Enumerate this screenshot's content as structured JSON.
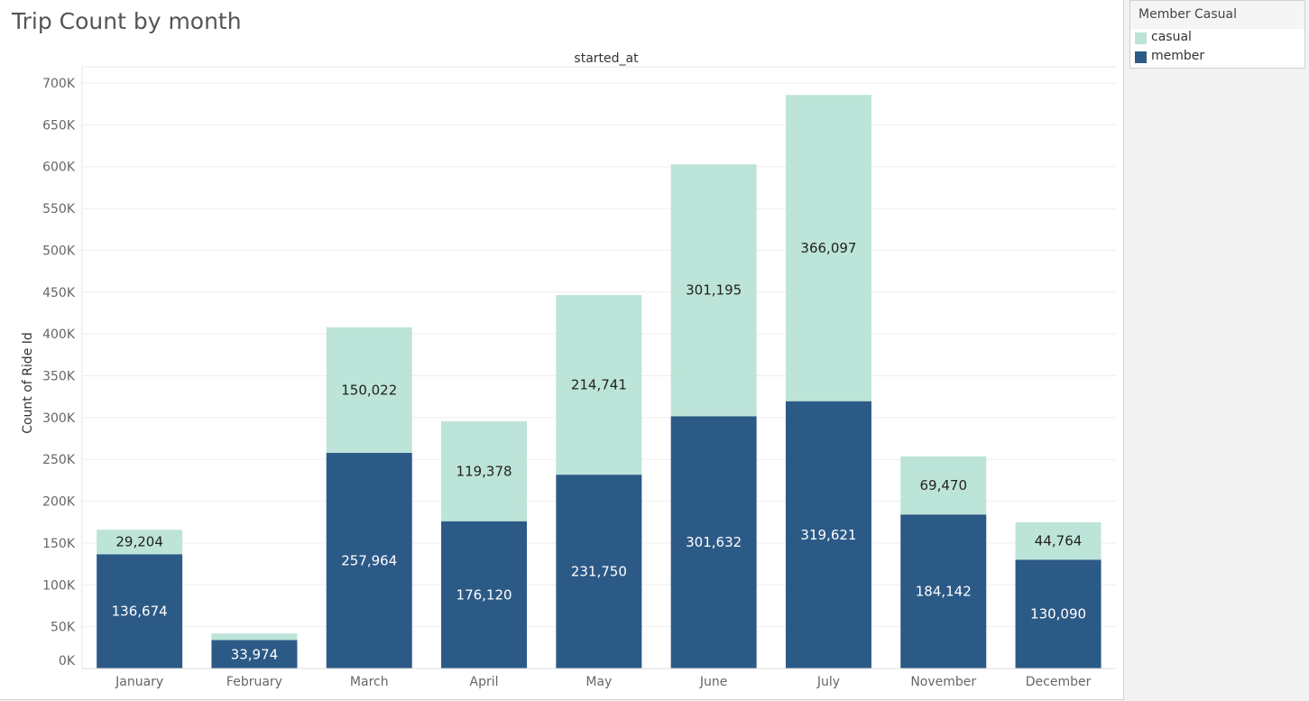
{
  "title": "Trip Count by month",
  "legend": {
    "title": "Member Casual",
    "items": [
      {
        "label": "casual",
        "color": "#bde4d8"
      },
      {
        "label": "member",
        "color": "#2c5a87"
      }
    ]
  },
  "chart_data": {
    "type": "bar",
    "stacked": true,
    "header": "started_at",
    "ylabel": "Count of Ride Id",
    "ylim": [
      0,
      700000
    ],
    "yticks": [
      0,
      50000,
      100000,
      150000,
      200000,
      250000,
      300000,
      350000,
      400000,
      450000,
      500000,
      550000,
      600000,
      650000,
      700000
    ],
    "ytick_labels": [
      "0K",
      "50K",
      "100K",
      "150K",
      "200K",
      "250K",
      "300K",
      "350K",
      "400K",
      "450K",
      "500K",
      "550K",
      "600K",
      "650K",
      "700K"
    ],
    "grid": true,
    "legend_position": "right",
    "categories": [
      "January",
      "February",
      "March",
      "April",
      "May",
      "June",
      "July",
      "November",
      "December"
    ],
    "series": [
      {
        "name": "member",
        "color": "#2c5a87",
        "label_color": "#ffffff",
        "values": [
          136674,
          33974,
          257964,
          176120,
          231750,
          301632,
          319621,
          184142,
          130090
        ],
        "labels": [
          "136,674",
          "33,974",
          "257,964",
          "176,120",
          "231,750",
          "301,632",
          "319,621",
          "184,142",
          "130,090"
        ]
      },
      {
        "name": "casual",
        "color": "#bde4d8",
        "label_color": "#222222",
        "values": [
          29204,
          8000,
          150022,
          119378,
          214741,
          301195,
          366097,
          69470,
          44764
        ],
        "labels": [
          "29,204",
          "",
          "150,022",
          "119,378",
          "214,741",
          "301,195",
          "366,097",
          "69,470",
          "44,764"
        ]
      }
    ]
  }
}
